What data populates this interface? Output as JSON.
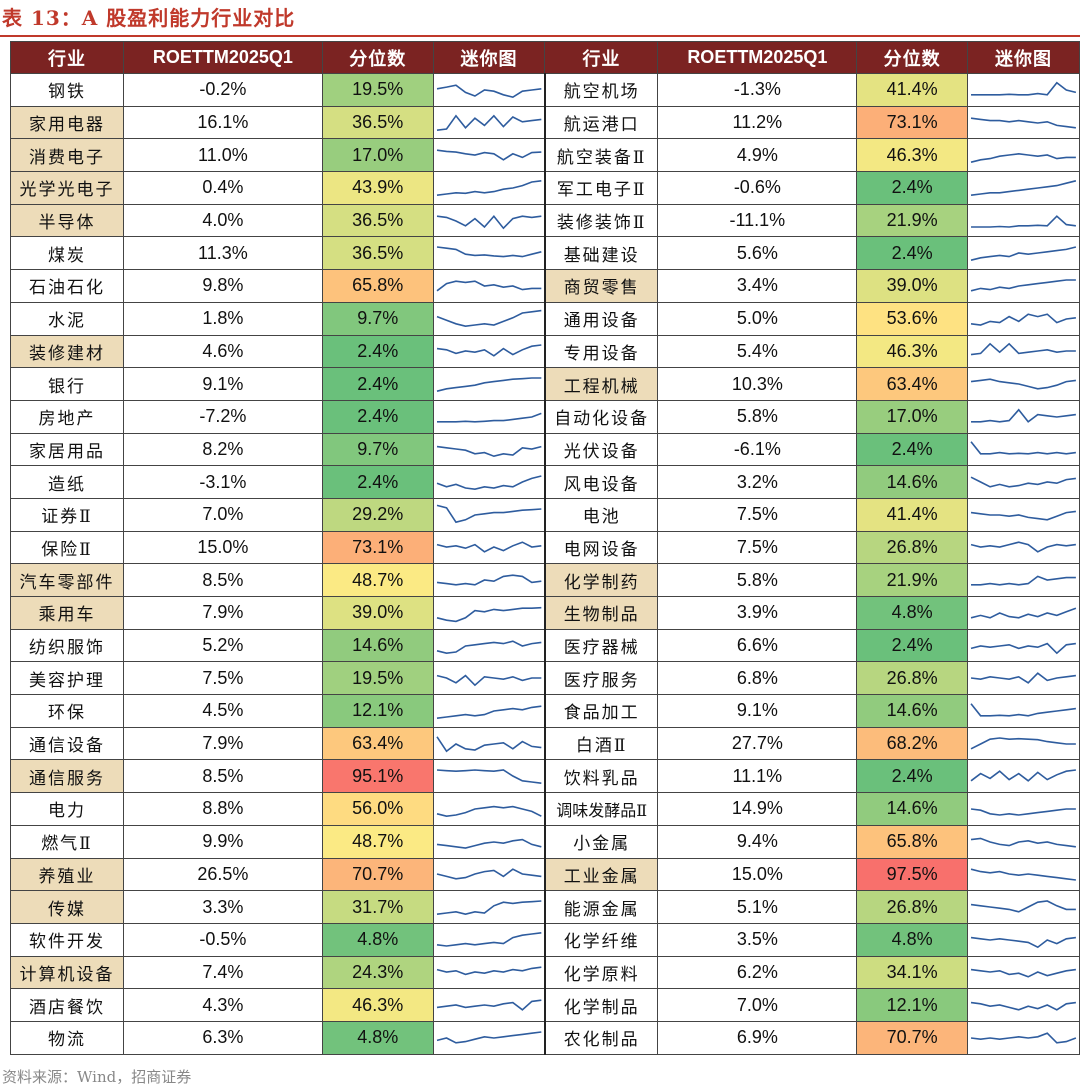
{
  "title": "表 13：A 股盈利能力行业对比",
  "headers": [
    "行业",
    "ROETTM2025Q1",
    "分位数",
    "迷你图",
    "行业",
    "ROETTM2025Q1",
    "分位数",
    "迷你图"
  ],
  "source": "资料来源：Wind，招商证券",
  "left_rows": [
    {
      "name": "钢铁",
      "hl": false,
      "roe": "-0.2%",
      "pct": "19.5%",
      "pv": 19.5,
      "s": [
        0.55,
        0.62,
        0.7,
        0.4,
        0.25,
        0.5,
        0.45,
        0.3,
        0.2,
        0.45,
        0.5,
        0.55
      ]
    },
    {
      "name": "家用电器",
      "hl": true,
      "roe": "16.1%",
      "pct": "36.5%",
      "pv": 36.5,
      "s": [
        0.2,
        0.25,
        0.8,
        0.3,
        0.7,
        0.4,
        0.8,
        0.35,
        0.75,
        0.55,
        0.6,
        0.65
      ]
    },
    {
      "name": "消费电子",
      "hl": true,
      "roe": "11.0%",
      "pct": "17.0%",
      "pv": 17.0,
      "s": [
        0.7,
        0.65,
        0.62,
        0.55,
        0.5,
        0.6,
        0.55,
        0.3,
        0.55,
        0.4,
        0.6,
        0.62
      ]
    },
    {
      "name": "光学光电子",
      "hl": true,
      "roe": "0.4%",
      "pct": "43.9%",
      "pv": 43.9,
      "s": [
        0.2,
        0.25,
        0.3,
        0.28,
        0.35,
        0.3,
        0.35,
        0.45,
        0.5,
        0.6,
        0.75,
        0.8
      ]
    },
    {
      "name": "半导体",
      "hl": true,
      "roe": "4.0%",
      "pct": "36.5%",
      "pv": 36.5,
      "s": [
        0.7,
        0.65,
        0.5,
        0.3,
        0.6,
        0.25,
        0.7,
        0.2,
        0.6,
        0.7,
        0.65,
        0.7
      ]
    },
    {
      "name": "煤炭",
      "hl": false,
      "roe": "11.3%",
      "pct": "36.5%",
      "pv": 36.5,
      "s": [
        0.75,
        0.7,
        0.65,
        0.45,
        0.4,
        0.42,
        0.38,
        0.35,
        0.4,
        0.35,
        0.45,
        0.55
      ]
    },
    {
      "name": "石油石化",
      "hl": false,
      "roe": "9.8%",
      "pct": "65.8%",
      "pv": 65.8,
      "s": [
        0.3,
        0.6,
        0.7,
        0.65,
        0.7,
        0.5,
        0.55,
        0.45,
        0.5,
        0.35,
        0.4,
        0.4
      ]
    },
    {
      "name": "水泥",
      "hl": false,
      "roe": "1.8%",
      "pct": "9.7%",
      "pv": 9.7,
      "s": [
        0.6,
        0.45,
        0.3,
        0.2,
        0.25,
        0.3,
        0.25,
        0.4,
        0.55,
        0.75,
        0.8,
        0.85
      ]
    },
    {
      "name": "装修建材",
      "hl": true,
      "roe": "4.6%",
      "pct": "2.4%",
      "pv": 2.4,
      "s": [
        0.6,
        0.55,
        0.4,
        0.5,
        0.45,
        0.55,
        0.3,
        0.6,
        0.35,
        0.55,
        0.7,
        0.75
      ]
    },
    {
      "name": "银行",
      "hl": false,
      "roe": "9.1%",
      "pct": "2.4%",
      "pv": 2.4,
      "s": [
        0.2,
        0.3,
        0.35,
        0.4,
        0.45,
        0.55,
        0.6,
        0.65,
        0.7,
        0.72,
        0.75,
        0.75
      ]
    },
    {
      "name": "房地产",
      "hl": false,
      "roe": "-7.2%",
      "pct": "2.4%",
      "pv": 2.4,
      "s": [
        0.3,
        0.3,
        0.3,
        0.32,
        0.3,
        0.32,
        0.35,
        0.35,
        0.4,
        0.45,
        0.5,
        0.65
      ]
    },
    {
      "name": "家居用品",
      "hl": false,
      "roe": "8.2%",
      "pct": "9.7%",
      "pv": 9.7,
      "s": [
        0.6,
        0.55,
        0.5,
        0.45,
        0.3,
        0.35,
        0.2,
        0.3,
        0.25,
        0.55,
        0.5,
        0.6
      ]
    },
    {
      "name": "造纸",
      "hl": false,
      "roe": "-3.1%",
      "pct": "2.4%",
      "pv": 2.4,
      "s": [
        0.45,
        0.3,
        0.4,
        0.25,
        0.2,
        0.3,
        0.25,
        0.35,
        0.3,
        0.5,
        0.65,
        0.75
      ]
    },
    {
      "name": "证券Ⅱ",
      "hl": false,
      "roe": "7.0%",
      "pct": "29.2%",
      "pv": 29.2,
      "s": [
        0.9,
        0.8,
        0.2,
        0.3,
        0.5,
        0.55,
        0.6,
        0.6,
        0.65,
        0.7,
        0.72,
        0.75
      ]
    },
    {
      "name": "保险Ⅱ",
      "hl": false,
      "roe": "15.0%",
      "pct": "73.1%",
      "pv": 73.1,
      "s": [
        0.6,
        0.5,
        0.55,
        0.45,
        0.6,
        0.3,
        0.5,
        0.35,
        0.55,
        0.7,
        0.5,
        0.55
      ]
    },
    {
      "name": "汽车零部件",
      "hl": true,
      "roe": "8.5%",
      "pct": "48.7%",
      "pv": 48.7,
      "s": [
        0.4,
        0.35,
        0.3,
        0.35,
        0.3,
        0.5,
        0.45,
        0.65,
        0.7,
        0.65,
        0.4,
        0.45
      ]
    },
    {
      "name": "乘用车",
      "hl": true,
      "roe": "7.9%",
      "pct": "39.0%",
      "pv": 39.0,
      "s": [
        0.3,
        0.2,
        0.15,
        0.3,
        0.6,
        0.55,
        0.65,
        0.6,
        0.65,
        0.7,
        0.7,
        0.72
      ]
    },
    {
      "name": "纺织服饰",
      "hl": false,
      "roe": "5.2%",
      "pct": "14.6%",
      "pv": 14.6,
      "s": [
        0.3,
        0.2,
        0.25,
        0.5,
        0.55,
        0.6,
        0.65,
        0.6,
        0.7,
        0.5,
        0.6,
        0.65
      ]
    },
    {
      "name": "美容护理",
      "hl": false,
      "roe": "7.5%",
      "pct": "19.5%",
      "pv": 19.5,
      "s": [
        0.6,
        0.5,
        0.3,
        0.6,
        0.2,
        0.55,
        0.5,
        0.45,
        0.55,
        0.4,
        0.5,
        0.5
      ]
    },
    {
      "name": "环保",
      "hl": false,
      "roe": "4.5%",
      "pct": "12.1%",
      "pv": 12.1,
      "s": [
        0.2,
        0.25,
        0.3,
        0.35,
        0.3,
        0.35,
        0.5,
        0.55,
        0.6,
        0.55,
        0.65,
        0.7
      ]
    },
    {
      "name": "通信设备",
      "hl": false,
      "roe": "7.9%",
      "pct": "63.4%",
      "pv": 63.4,
      "s": [
        0.8,
        0.2,
        0.5,
        0.3,
        0.25,
        0.45,
        0.5,
        0.55,
        0.3,
        0.6,
        0.4,
        0.35
      ]
    },
    {
      "name": "通信服务",
      "hl": true,
      "roe": "8.5%",
      "pct": "95.1%",
      "pv": 95.1,
      "s": [
        0.75,
        0.72,
        0.7,
        0.72,
        0.75,
        0.72,
        0.7,
        0.75,
        0.5,
        0.3,
        0.25,
        0.2
      ]
    },
    {
      "name": "电力",
      "hl": false,
      "roe": "8.8%",
      "pct": "56.0%",
      "pv": 56.0,
      "s": [
        0.3,
        0.2,
        0.25,
        0.35,
        0.5,
        0.55,
        0.6,
        0.55,
        0.6,
        0.5,
        0.4,
        0.2
      ]
    },
    {
      "name": "燃气Ⅱ",
      "hl": false,
      "roe": "9.9%",
      "pct": "48.7%",
      "pv": 48.7,
      "s": [
        0.4,
        0.35,
        0.3,
        0.25,
        0.35,
        0.45,
        0.5,
        0.45,
        0.55,
        0.6,
        0.4,
        0.3
      ]
    },
    {
      "name": "养殖业",
      "hl": true,
      "roe": "26.5%",
      "pct": "70.7%",
      "pv": 70.7,
      "s": [
        0.5,
        0.4,
        0.3,
        0.35,
        0.5,
        0.6,
        0.65,
        0.4,
        0.7,
        0.5,
        0.45,
        0.4
      ]
    },
    {
      "name": "传媒",
      "hl": true,
      "roe": "3.3%",
      "pct": "31.7%",
      "pv": 31.7,
      "s": [
        0.2,
        0.25,
        0.3,
        0.2,
        0.3,
        0.25,
        0.55,
        0.7,
        0.65,
        0.7,
        0.72,
        0.75
      ]
    },
    {
      "name": "软件开发",
      "hl": false,
      "roe": "-0.5%",
      "pct": "4.8%",
      "pv": 4.8,
      "s": [
        0.3,
        0.25,
        0.3,
        0.35,
        0.3,
        0.35,
        0.4,
        0.35,
        0.6,
        0.7,
        0.75,
        0.8
      ]
    },
    {
      "name": "计算机设备",
      "hl": true,
      "roe": "7.4%",
      "pct": "24.3%",
      "pv": 24.3,
      "s": [
        0.6,
        0.5,
        0.55,
        0.4,
        0.5,
        0.45,
        0.55,
        0.5,
        0.6,
        0.55,
        0.65,
        0.7
      ]
    },
    {
      "name": "酒店餐饮",
      "hl": false,
      "roe": "4.3%",
      "pct": "46.3%",
      "pv": 46.3,
      "s": [
        0.4,
        0.45,
        0.5,
        0.4,
        0.45,
        0.5,
        0.45,
        0.55,
        0.6,
        0.3,
        0.65,
        0.7
      ]
    },
    {
      "name": "物流",
      "hl": false,
      "roe": "6.3%",
      "pct": "4.8%",
      "pv": 4.8,
      "s": [
        0.4,
        0.5,
        0.3,
        0.35,
        0.45,
        0.55,
        0.5,
        0.55,
        0.6,
        0.65,
        0.7,
        0.75
      ]
    }
  ],
  "right_rows": [
    {
      "name": "航空机场",
      "hl": false,
      "roe": "-1.3%",
      "pct": "41.4%",
      "pv": 41.4,
      "s": [
        0.3,
        0.3,
        0.3,
        0.3,
        0.32,
        0.3,
        0.3,
        0.35,
        0.3,
        0.8,
        0.5,
        0.4
      ]
    },
    {
      "name": "航运港口",
      "hl": false,
      "roe": "11.2%",
      "pct": "73.1%",
      "pv": 73.1,
      "s": [
        0.7,
        0.65,
        0.6,
        0.6,
        0.55,
        0.6,
        0.55,
        0.5,
        0.55,
        0.4,
        0.35,
        0.3
      ]
    },
    {
      "name": "航空装备Ⅱ",
      "hl": false,
      "roe": "4.9%",
      "pct": "46.3%",
      "pv": 46.3,
      "s": [
        0.2,
        0.3,
        0.35,
        0.45,
        0.5,
        0.55,
        0.5,
        0.45,
        0.5,
        0.35,
        0.4,
        0.4
      ]
    },
    {
      "name": "军工电子Ⅱ",
      "hl": false,
      "roe": "-0.6%",
      "pct": "2.4%",
      "pv": 2.4,
      "s": [
        0.2,
        0.25,
        0.3,
        0.3,
        0.35,
        0.4,
        0.45,
        0.5,
        0.55,
        0.6,
        0.7,
        0.8
      ]
    },
    {
      "name": "装修装饰Ⅱ",
      "hl": false,
      "roe": "-11.1%",
      "pct": "21.9%",
      "pv": 21.9,
      "s": [
        0.25,
        0.25,
        0.25,
        0.27,
        0.25,
        0.3,
        0.3,
        0.32,
        0.3,
        0.7,
        0.35,
        0.3
      ]
    },
    {
      "name": "基础建设",
      "hl": false,
      "roe": "5.6%",
      "pct": "2.4%",
      "pv": 2.4,
      "s": [
        0.2,
        0.3,
        0.35,
        0.4,
        0.35,
        0.5,
        0.45,
        0.5,
        0.55,
        0.6,
        0.65,
        0.75
      ]
    },
    {
      "name": "商贸零售",
      "hl": true,
      "roe": "3.4%",
      "pct": "39.0%",
      "pv": 39.0,
      "s": [
        0.3,
        0.4,
        0.35,
        0.45,
        0.4,
        0.5,
        0.55,
        0.6,
        0.65,
        0.7,
        0.75,
        0.75
      ]
    },
    {
      "name": "通用设备",
      "hl": false,
      "roe": "5.0%",
      "pct": "53.6%",
      "pv": 53.6,
      "s": [
        0.3,
        0.25,
        0.4,
        0.35,
        0.6,
        0.4,
        0.7,
        0.6,
        0.7,
        0.35,
        0.5,
        0.55
      ]
    },
    {
      "name": "专用设备",
      "hl": false,
      "roe": "5.4%",
      "pct": "46.3%",
      "pv": 46.3,
      "s": [
        0.35,
        0.4,
        0.8,
        0.45,
        0.8,
        0.4,
        0.45,
        0.5,
        0.55,
        0.45,
        0.5,
        0.5
      ]
    },
    {
      "name": "工程机械",
      "hl": true,
      "roe": "10.3%",
      "pct": "63.4%",
      "pv": 63.4,
      "s": [
        0.6,
        0.65,
        0.7,
        0.6,
        0.55,
        0.5,
        0.4,
        0.3,
        0.35,
        0.45,
        0.6,
        0.65
      ]
    },
    {
      "name": "自动化设备",
      "hl": false,
      "roe": "5.8%",
      "pct": "17.0%",
      "pv": 17.0,
      "s": [
        0.3,
        0.3,
        0.35,
        0.3,
        0.35,
        0.8,
        0.3,
        0.6,
        0.55,
        0.5,
        0.55,
        0.6
      ]
    },
    {
      "name": "光伏设备",
      "hl": false,
      "roe": "-6.1%",
      "pct": "2.4%",
      "pv": 2.4,
      "s": [
        0.8,
        0.3,
        0.3,
        0.35,
        0.3,
        0.32,
        0.3,
        0.35,
        0.3,
        0.35,
        0.3,
        0.35
      ]
    },
    {
      "name": "风电设备",
      "hl": false,
      "roe": "3.2%",
      "pct": "14.6%",
      "pv": 14.6,
      "s": [
        0.7,
        0.5,
        0.3,
        0.4,
        0.3,
        0.35,
        0.45,
        0.4,
        0.5,
        0.45,
        0.6,
        0.65
      ]
    },
    {
      "name": "电池",
      "hl": false,
      "roe": "7.5%",
      "pct": "41.4%",
      "pv": 41.4,
      "s": [
        0.6,
        0.55,
        0.5,
        0.5,
        0.45,
        0.5,
        0.4,
        0.35,
        0.3,
        0.45,
        0.6,
        0.65
      ]
    },
    {
      "name": "电网设备",
      "hl": false,
      "roe": "7.5%",
      "pct": "26.8%",
      "pv": 26.8,
      "s": [
        0.6,
        0.5,
        0.55,
        0.5,
        0.6,
        0.7,
        0.6,
        0.3,
        0.5,
        0.6,
        0.55,
        0.6
      ]
    },
    {
      "name": "化学制药",
      "hl": true,
      "roe": "5.8%",
      "pct": "21.9%",
      "pv": 21.9,
      "s": [
        0.3,
        0.3,
        0.35,
        0.3,
        0.35,
        0.3,
        0.35,
        0.65,
        0.5,
        0.55,
        0.6,
        0.6
      ]
    },
    {
      "name": "生物制品",
      "hl": true,
      "roe": "3.9%",
      "pct": "4.8%",
      "pv": 4.8,
      "s": [
        0.3,
        0.4,
        0.3,
        0.5,
        0.35,
        0.3,
        0.45,
        0.35,
        0.5,
        0.4,
        0.55,
        0.7
      ]
    },
    {
      "name": "医疗器械",
      "hl": false,
      "roe": "6.6%",
      "pct": "2.4%",
      "pv": 2.4,
      "s": [
        0.4,
        0.5,
        0.45,
        0.5,
        0.55,
        0.4,
        0.5,
        0.45,
        0.6,
        0.2,
        0.55,
        0.6
      ]
    },
    {
      "name": "医疗服务",
      "hl": false,
      "roe": "6.8%",
      "pct": "26.8%",
      "pv": 26.8,
      "s": [
        0.5,
        0.45,
        0.55,
        0.5,
        0.45,
        0.55,
        0.3,
        0.7,
        0.4,
        0.5,
        0.55,
        0.6
      ]
    },
    {
      "name": "食品加工",
      "hl": false,
      "roe": "9.1%",
      "pct": "14.6%",
      "pv": 14.6,
      "s": [
        0.8,
        0.3,
        0.3,
        0.32,
        0.3,
        0.35,
        0.3,
        0.4,
        0.45,
        0.5,
        0.55,
        0.6
      ]
    },
    {
      "name": "白酒Ⅱ",
      "hl": false,
      "roe": "27.7%",
      "pct": "68.2%",
      "pv": 68.2,
      "s": [
        0.3,
        0.5,
        0.7,
        0.75,
        0.7,
        0.72,
        0.7,
        0.68,
        0.6,
        0.55,
        0.5,
        0.5
      ]
    },
    {
      "name": "饮料乳品",
      "hl": false,
      "roe": "11.1%",
      "pct": "2.4%",
      "pv": 2.4,
      "s": [
        0.3,
        0.6,
        0.4,
        0.7,
        0.35,
        0.6,
        0.3,
        0.65,
        0.35,
        0.55,
        0.7,
        0.75
      ]
    },
    {
      "name": "调味发酵品Ⅱ",
      "hl": false,
      "roe": "14.9%",
      "pct": "14.6%",
      "pv": 14.6,
      "s": [
        0.5,
        0.45,
        0.3,
        0.25,
        0.3,
        0.25,
        0.3,
        0.35,
        0.4,
        0.45,
        0.5,
        0.5
      ]
    },
    {
      "name": "小金属",
      "hl": false,
      "roe": "9.4%",
      "pct": "65.8%",
      "pv": 65.8,
      "s": [
        0.6,
        0.65,
        0.5,
        0.4,
        0.35,
        0.5,
        0.55,
        0.45,
        0.5,
        0.4,
        0.35,
        0.3
      ]
    },
    {
      "name": "工业金属",
      "hl": true,
      "roe": "15.0%",
      "pct": "97.5%",
      "pv": 97.5,
      "s": [
        0.7,
        0.6,
        0.55,
        0.6,
        0.5,
        0.45,
        0.5,
        0.45,
        0.4,
        0.35,
        0.3,
        0.25
      ]
    },
    {
      "name": "能源金属",
      "hl": false,
      "roe": "5.1%",
      "pct": "26.8%",
      "pv": 26.8,
      "s": [
        0.6,
        0.55,
        0.5,
        0.45,
        0.4,
        0.3,
        0.5,
        0.7,
        0.75,
        0.55,
        0.4,
        0.4
      ]
    },
    {
      "name": "化学纤维",
      "hl": false,
      "roe": "3.5%",
      "pct": "4.8%",
      "pv": 4.8,
      "s": [
        0.6,
        0.55,
        0.5,
        0.55,
        0.5,
        0.45,
        0.4,
        0.2,
        0.5,
        0.35,
        0.55,
        0.6
      ]
    },
    {
      "name": "化学原料",
      "hl": false,
      "roe": "6.2%",
      "pct": "34.1%",
      "pv": 34.1,
      "s": [
        0.6,
        0.55,
        0.5,
        0.55,
        0.4,
        0.45,
        0.3,
        0.5,
        0.35,
        0.45,
        0.55,
        0.6
      ]
    },
    {
      "name": "化学制品",
      "hl": false,
      "roe": "7.0%",
      "pct": "12.1%",
      "pv": 12.1,
      "s": [
        0.6,
        0.55,
        0.45,
        0.5,
        0.4,
        0.3,
        0.45,
        0.35,
        0.5,
        0.3,
        0.55,
        0.6
      ]
    },
    {
      "name": "农化制品",
      "hl": false,
      "roe": "6.9%",
      "pct": "70.7%",
      "pv": 70.7,
      "s": [
        0.5,
        0.45,
        0.5,
        0.45,
        0.5,
        0.55,
        0.5,
        0.55,
        0.7,
        0.3,
        0.35,
        0.5
      ]
    }
  ]
}
